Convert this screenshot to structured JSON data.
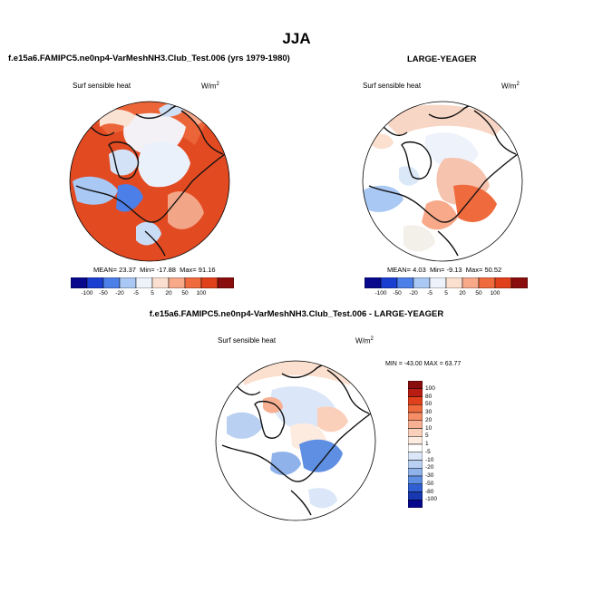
{
  "figure": {
    "season_title": "JJA"
  },
  "panels": [
    {
      "title": "f.e15a6.FAMIPC5.ne0np4-VarMeshNH3.Club_Test.006 (yrs 1979-1980)",
      "variable": "Surf sensible heat",
      "units": "W/m",
      "units_sup": "2",
      "stats": {
        "mean_label": "MEAN=",
        "mean": "23.37",
        "min_label": "Min=",
        "min": "-17.88",
        "max_label": "Max=",
        "max": "91.16"
      }
    },
    {
      "title": "LARGE-YEAGER",
      "variable": "Surf sensible heat",
      "units": "W/m",
      "units_sup": "2",
      "stats": {
        "mean_label": "MEAN=",
        "mean": "4.03",
        "min_label": "Min=",
        "min": "-9.13",
        "max_label": "Max=",
        "max": "50.52"
      }
    },
    {
      "title": "f.e15a6.FAMIPC5.ne0np4-VarMeshNH3.Club_Test.006 - LARGE-YEAGER",
      "variable": "Surf sensible heat",
      "units": "W/m",
      "units_sup": "2",
      "stats_text": "MIN = -43.00  MAX =  63.77"
    }
  ],
  "chart_data": [
    {
      "type": "heatmap",
      "projection": "north-polar-stereographic",
      "title": "f.e15a6.FAMIPC5.ne0np4-VarMeshNH3.Club_Test.006 (yrs 1979-1980)",
      "variable": "Surf sensible heat",
      "units": "W/m2",
      "mean": 23.37,
      "min": -17.88,
      "max": 91.16,
      "colorbar_levels": [
        "-100",
        "-50",
        "-20",
        "-5",
        "5",
        "20",
        "50",
        "100"
      ],
      "colorbar_colors": [
        "#08088c",
        "#1a3fd0",
        "#4d7fe8",
        "#a9c8f3",
        "#eef3fb",
        "#fbe0cf",
        "#f8a98a",
        "#ef6a3d",
        "#e0401b",
        "#8a0d0d"
      ]
    },
    {
      "type": "heatmap",
      "projection": "north-polar-stereographic",
      "title": "LARGE-YEAGER",
      "variable": "Surf sensible heat",
      "units": "W/m2",
      "mean": 4.03,
      "min": -9.13,
      "max": 50.52,
      "colorbar_levels": [
        "-100",
        "-50",
        "-20",
        "-5",
        "5",
        "20",
        "50",
        "100"
      ],
      "colorbar_colors": [
        "#08088c",
        "#1a3fd0",
        "#4d7fe8",
        "#a9c8f3",
        "#eef3fb",
        "#fbe0cf",
        "#f8a98a",
        "#ef6a3d",
        "#e0401b",
        "#8a0d0d"
      ]
    },
    {
      "type": "heatmap",
      "projection": "north-polar-stereographic",
      "title": "f.e15a6.FAMIPC5.ne0np4-VarMeshNH3.Club_Test.006 - LARGE-YEAGER",
      "variable": "Surf sensible heat",
      "units": "W/m2",
      "min": -43.0,
      "max": 63.77,
      "colorbar_levels": [
        "100",
        "80",
        "50",
        "30",
        "20",
        "10",
        "5",
        "1",
        "-5",
        "-10",
        "-20",
        "-30",
        "-50",
        "-80",
        "-100"
      ],
      "colorbar_colors": [
        "#8a0d0d",
        "#b81c12",
        "#e0401b",
        "#ef6a3d",
        "#f58d66",
        "#f8b093",
        "#fbd0bb",
        "#fdebe0",
        "#ffffff",
        "#dbe7f8",
        "#b9d0f2",
        "#8fb2ea",
        "#5f8fe2",
        "#2f5fd3",
        "#1838b0",
        "#08088c"
      ]
    }
  ]
}
